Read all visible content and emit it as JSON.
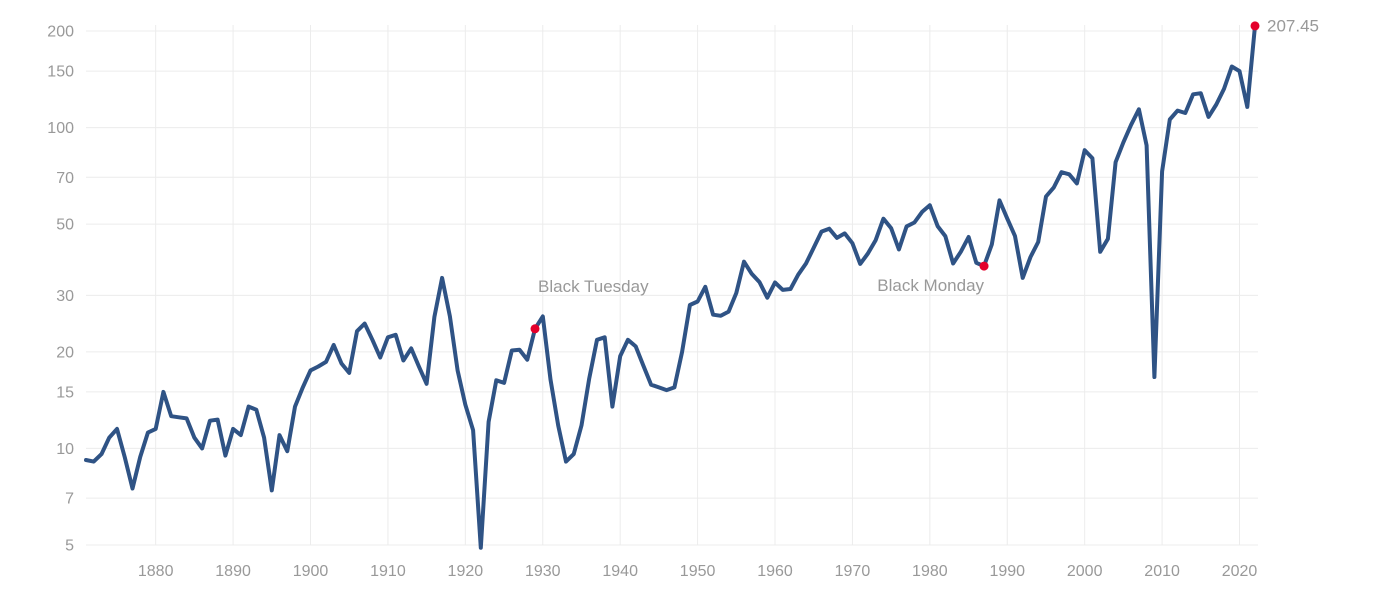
{
  "chart_data": {
    "type": "line",
    "title": "",
    "xlabel": "",
    "ylabel": "",
    "y_scale": "log",
    "xlim": [
      1871,
      2022
    ],
    "ylim": [
      5,
      200
    ],
    "grid": true,
    "x_ticks": [
      1880,
      1890,
      1900,
      1910,
      1920,
      1930,
      1940,
      1950,
      1960,
      1970,
      1980,
      1990,
      2000,
      2010,
      2020
    ],
    "y_ticks": [
      5,
      7,
      10,
      15,
      20,
      30,
      50,
      70,
      100,
      150,
      200
    ],
    "line_color": "#2f5385",
    "marker_color": "#e4002b",
    "series": [
      {
        "x": [
          1871,
          1872,
          1873,
          1874,
          1875,
          1876,
          1877,
          1878,
          1879,
          1880,
          1881,
          1882,
          1883,
          1884,
          1885,
          1886,
          1887,
          1888,
          1889,
          1890,
          1891,
          1892,
          1893,
          1894,
          1895,
          1896,
          1897,
          1898,
          1899,
          1900,
          1901,
          1902,
          1903,
          1904,
          1905,
          1906,
          1907,
          1908,
          1909,
          1910,
          1911,
          1912,
          1913,
          1914,
          1915,
          1916,
          1917,
          1918,
          1919,
          1920,
          1921,
          1922,
          1923,
          1924,
          1925,
          1926,
          1927,
          1928,
          1929,
          1930,
          1931,
          1932,
          1933,
          1934,
          1935,
          1936,
          1937,
          1938,
          1939,
          1940,
          1941,
          1942,
          1943,
          1944,
          1945,
          1946,
          1947,
          1948,
          1949,
          1950,
          1951,
          1952,
          1953,
          1954,
          1955,
          1956,
          1957,
          1958,
          1959,
          1960,
          1961,
          1962,
          1963,
          1964,
          1965,
          1966,
          1967,
          1968,
          1969,
          1970,
          1971,
          1972,
          1973,
          1974,
          1975,
          1976,
          1977,
          1978,
          1979,
          1980,
          1981,
          1982,
          1983,
          1984,
          1985,
          1986,
          1987,
          1988,
          1989,
          1990,
          1991,
          1992,
          1993,
          1994,
          1995,
          1996,
          1997,
          1998,
          1999,
          2000,
          2001,
          2002,
          2003,
          2004,
          2005,
          2006,
          2007,
          2008,
          2009,
          2010,
          2011,
          2012,
          2013,
          2014,
          2015,
          2016,
          2017,
          2018,
          2019,
          2020,
          2021,
          2022
        ],
        "values": [
          9.2,
          9.1,
          9.6,
          10.8,
          11.5,
          9.4,
          7.5,
          9.4,
          11.2,
          11.5,
          15.0,
          12.6,
          12.5,
          12.4,
          10.8,
          10.0,
          12.2,
          12.3,
          9.5,
          11.5,
          11.0,
          13.5,
          13.2,
          10.8,
          7.4,
          11.0,
          9.8,
          13.5,
          15.5,
          17.5,
          18.0,
          18.6,
          21.0,
          18.4,
          17.2,
          23.2,
          24.5,
          21.8,
          19.2,
          22.2,
          22.6,
          18.8,
          20.5,
          18.0,
          15.9,
          25.7,
          34.0,
          25.8,
          17.5,
          13.7,
          11.4,
          4.9,
          12.1,
          16.3,
          16.0,
          20.2,
          20.3,
          18.9,
          23.6,
          25.8,
          16.4,
          11.8,
          9.1,
          9.6,
          11.8,
          16.5,
          21.8,
          22.2,
          13.5,
          19.4,
          21.8,
          20.8,
          18.1,
          15.8,
          15.5,
          15.2,
          15.5,
          20.0,
          28.0,
          28.7,
          31.9,
          26.1,
          25.9,
          26.7,
          30.5,
          38.2,
          35.0,
          33.0,
          29.5,
          32.9,
          31.2,
          31.4,
          34.8,
          37.7,
          42.2,
          47.4,
          48.4,
          45.3,
          46.8,
          43.6,
          37.6,
          40.5,
          44.6,
          52.0,
          48.6,
          41.7,
          49.2,
          50.6,
          54.6,
          57.3,
          49.3,
          45.9,
          37.7,
          41.0,
          45.6,
          37.9,
          37.0,
          43.2,
          59.3,
          52.0,
          45.9,
          34.0,
          39.5,
          44.0,
          61.0,
          65.0,
          72.6,
          71.5,
          67.0,
          85.0,
          80.2,
          41.0,
          45.0,
          78.0,
          90.0,
          102.0,
          114.0,
          88.0,
          16.7,
          73.0,
          106.0,
          113.0,
          111.0,
          127.0,
          128.0,
          108.0,
          118.0,
          132.0,
          155.0,
          150.0,
          116.0,
          207.45
        ]
      }
    ],
    "annotations": [
      {
        "x": 1929,
        "y": 23.6,
        "text": "Black Tuesday"
      },
      {
        "x": 1987,
        "y": 37.0,
        "text": "Black Monday"
      }
    ],
    "last_point": {
      "x": 2022,
      "y": 207.45,
      "label": "207.45"
    }
  }
}
